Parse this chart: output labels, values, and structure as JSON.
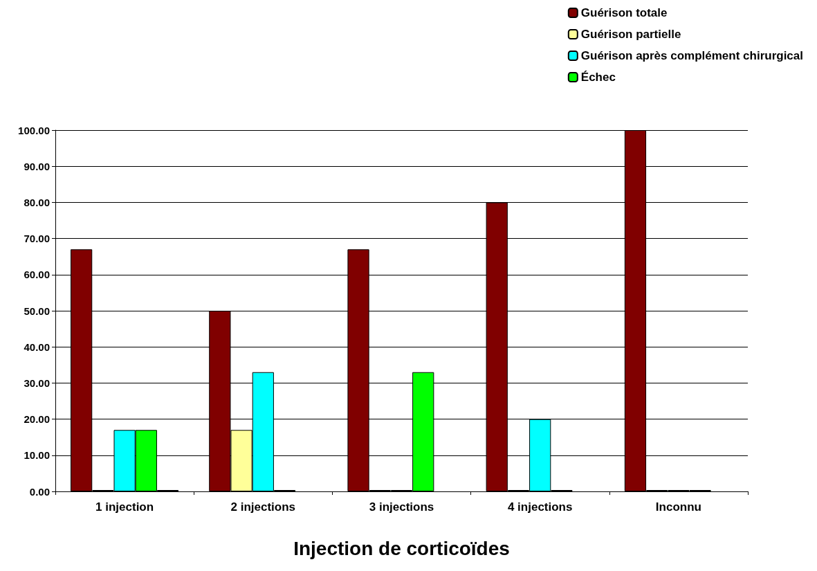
{
  "chart_data": {
    "type": "bar",
    "xlabel": "Injection de corticoïdes",
    "categories": [
      "1 injection",
      "2 injections",
      "3 injections",
      "4 injections",
      "Inconnu"
    ],
    "series": [
      {
        "name": "Guérison totale",
        "color": "#800000",
        "values": [
          67,
          50,
          67,
          80,
          100
        ]
      },
      {
        "name": "Guérison partielle",
        "color": "#ffff99",
        "values": [
          0,
          17,
          0,
          0,
          0
        ]
      },
      {
        "name": "Guérison après complément chirurgical",
        "color": "#00ffff",
        "values": [
          17,
          33,
          0,
          20,
          0
        ]
      },
      {
        "name": "Échec",
        "color": "#00ff00",
        "values": [
          17,
          0,
          33,
          0,
          0
        ]
      },
      {
        "color": "#0000cc",
        "values": [
          0,
          null,
          null,
          null,
          null
        ]
      }
    ],
    "ylim": [
      0,
      100
    ],
    "yticks": [
      {
        "value": 0,
        "label": "0.00"
      },
      {
        "value": 10,
        "label": "10.00"
      },
      {
        "value": 20,
        "label": "20.00"
      },
      {
        "value": 30,
        "label": "30.00"
      },
      {
        "value": 40,
        "label": "40.00"
      },
      {
        "value": 50,
        "label": "50.00"
      },
      {
        "value": 60,
        "label": "60.00"
      },
      {
        "value": 70,
        "label": "70.00"
      },
      {
        "value": 80,
        "label": "80.00"
      },
      {
        "value": 90,
        "label": "90.00"
      },
      {
        "value": 100,
        "label": "100.00"
      }
    ],
    "grid": "y",
    "legend": "top right"
  }
}
